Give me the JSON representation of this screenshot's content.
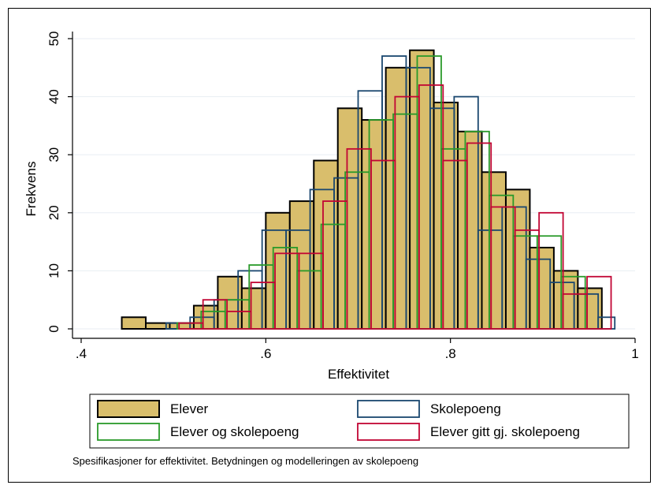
{
  "chart_data": {
    "type": "bar",
    "subtype": "overlaid-histogram",
    "xlabel": "Effektivitet",
    "ylabel": "Frekvens",
    "xlim": [
      0.4,
      1.0
    ],
    "ylim": [
      0,
      50
    ],
    "xticks": [
      0.4,
      0.6,
      0.8,
      1.0
    ],
    "xtick_labels": [
      ".4",
      ".6",
      ".8",
      "1"
    ],
    "yticks": [
      0,
      10,
      20,
      30,
      40,
      50
    ],
    "ytick_labels": [
      "0",
      "10",
      "20",
      "30",
      "40",
      "50"
    ],
    "grid": "horizontal",
    "legend_position": "bottom",
    "note": "Spesifikasjoner for effektivitet. Betydningen og modelleringen av skolepoeng",
    "series": [
      {
        "name": "Elever",
        "style": "filled",
        "fill": "#d9be6c",
        "stroke": "#000000",
        "bins": [
          {
            "x0": 0.444,
            "x1": 0.47,
            "y": 2
          },
          {
            "x0": 0.47,
            "x1": 0.496,
            "y": 1
          },
          {
            "x0": 0.496,
            "x1": 0.522,
            "y": 1
          },
          {
            "x0": 0.522,
            "x1": 0.548,
            "y": 4
          },
          {
            "x0": 0.548,
            "x1": 0.574,
            "y": 9
          },
          {
            "x0": 0.574,
            "x1": 0.6,
            "y": 7
          },
          {
            "x0": 0.6,
            "x1": 0.626,
            "y": 20
          },
          {
            "x0": 0.626,
            "x1": 0.652,
            "y": 22
          },
          {
            "x0": 0.652,
            "x1": 0.678,
            "y": 29
          },
          {
            "x0": 0.678,
            "x1": 0.704,
            "y": 38
          },
          {
            "x0": 0.704,
            "x1": 0.73,
            "y": 36
          },
          {
            "x0": 0.73,
            "x1": 0.756,
            "y": 45
          },
          {
            "x0": 0.756,
            "x1": 0.782,
            "y": 48
          },
          {
            "x0": 0.782,
            "x1": 0.808,
            "y": 39
          },
          {
            "x0": 0.808,
            "x1": 0.834,
            "y": 34
          },
          {
            "x0": 0.834,
            "x1": 0.86,
            "y": 27
          },
          {
            "x0": 0.86,
            "x1": 0.886,
            "y": 24
          },
          {
            "x0": 0.886,
            "x1": 0.912,
            "y": 14
          },
          {
            "x0": 0.912,
            "x1": 0.938,
            "y": 10
          },
          {
            "x0": 0.938,
            "x1": 0.964,
            "y": 7
          }
        ]
      },
      {
        "name": "Skolepoeng",
        "style": "outline",
        "stroke": "#1a476f",
        "bins": [
          {
            "x0": 0.492,
            "x1": 0.518,
            "y": 1
          },
          {
            "x0": 0.518,
            "x1": 0.544,
            "y": 2
          },
          {
            "x0": 0.544,
            "x1": 0.57,
            "y": 5
          },
          {
            "x0": 0.57,
            "x1": 0.596,
            "y": 10
          },
          {
            "x0": 0.596,
            "x1": 0.622,
            "y": 17
          },
          {
            "x0": 0.622,
            "x1": 0.648,
            "y": 17
          },
          {
            "x0": 0.648,
            "x1": 0.674,
            "y": 24
          },
          {
            "x0": 0.674,
            "x1": 0.7,
            "y": 26
          },
          {
            "x0": 0.7,
            "x1": 0.726,
            "y": 41
          },
          {
            "x0": 0.726,
            "x1": 0.752,
            "y": 47
          },
          {
            "x0": 0.752,
            "x1": 0.778,
            "y": 45
          },
          {
            "x0": 0.778,
            "x1": 0.804,
            "y": 38
          },
          {
            "x0": 0.804,
            "x1": 0.83,
            "y": 40
          },
          {
            "x0": 0.83,
            "x1": 0.856,
            "y": 17
          },
          {
            "x0": 0.856,
            "x1": 0.882,
            "y": 21
          },
          {
            "x0": 0.882,
            "x1": 0.908,
            "y": 12
          },
          {
            "x0": 0.908,
            "x1": 0.934,
            "y": 8
          },
          {
            "x0": 0.934,
            "x1": 0.96,
            "y": 6
          },
          {
            "x0": 0.96,
            "x1": 0.978,
            "y": 2
          }
        ]
      },
      {
        "name": "Elever og skolepoeng",
        "style": "outline",
        "stroke": "#2a9a2a",
        "bins": [
          {
            "x0": 0.504,
            "x1": 0.53,
            "y": 1
          },
          {
            "x0": 0.53,
            "x1": 0.556,
            "y": 3
          },
          {
            "x0": 0.556,
            "x1": 0.582,
            "y": 5
          },
          {
            "x0": 0.582,
            "x1": 0.608,
            "y": 11
          },
          {
            "x0": 0.608,
            "x1": 0.634,
            "y": 14
          },
          {
            "x0": 0.634,
            "x1": 0.66,
            "y": 10
          },
          {
            "x0": 0.66,
            "x1": 0.686,
            "y": 18
          },
          {
            "x0": 0.686,
            "x1": 0.712,
            "y": 27
          },
          {
            "x0": 0.712,
            "x1": 0.738,
            "y": 36
          },
          {
            "x0": 0.738,
            "x1": 0.764,
            "y": 37
          },
          {
            "x0": 0.764,
            "x1": 0.79,
            "y": 47
          },
          {
            "x0": 0.79,
            "x1": 0.816,
            "y": 31
          },
          {
            "x0": 0.816,
            "x1": 0.842,
            "y": 34
          },
          {
            "x0": 0.842,
            "x1": 0.868,
            "y": 23
          },
          {
            "x0": 0.868,
            "x1": 0.894,
            "y": 16
          },
          {
            "x0": 0.894,
            "x1": 0.92,
            "y": 16
          },
          {
            "x0": 0.92,
            "x1": 0.946,
            "y": 9
          }
        ]
      },
      {
        "name": "Elever gitt gj. skolepoeng",
        "style": "outline",
        "stroke": "#c10534",
        "bins": [
          {
            "x0": 0.506,
            "x1": 0.532,
            "y": 1
          },
          {
            "x0": 0.532,
            "x1": 0.558,
            "y": 5
          },
          {
            "x0": 0.558,
            "x1": 0.584,
            "y": 3
          },
          {
            "x0": 0.584,
            "x1": 0.61,
            "y": 8
          },
          {
            "x0": 0.61,
            "x1": 0.636,
            "y": 13
          },
          {
            "x0": 0.636,
            "x1": 0.662,
            "y": 13
          },
          {
            "x0": 0.662,
            "x1": 0.688,
            "y": 22
          },
          {
            "x0": 0.688,
            "x1": 0.714,
            "y": 31
          },
          {
            "x0": 0.714,
            "x1": 0.74,
            "y": 29
          },
          {
            "x0": 0.74,
            "x1": 0.766,
            "y": 40
          },
          {
            "x0": 0.766,
            "x1": 0.792,
            "y": 42
          },
          {
            "x0": 0.792,
            "x1": 0.818,
            "y": 29
          },
          {
            "x0": 0.818,
            "x1": 0.844,
            "y": 32
          },
          {
            "x0": 0.844,
            "x1": 0.87,
            "y": 21
          },
          {
            "x0": 0.87,
            "x1": 0.896,
            "y": 17
          },
          {
            "x0": 0.896,
            "x1": 0.922,
            "y": 20
          },
          {
            "x0": 0.922,
            "x1": 0.948,
            "y": 6
          },
          {
            "x0": 0.948,
            "x1": 0.974,
            "y": 9
          }
        ]
      }
    ]
  }
}
